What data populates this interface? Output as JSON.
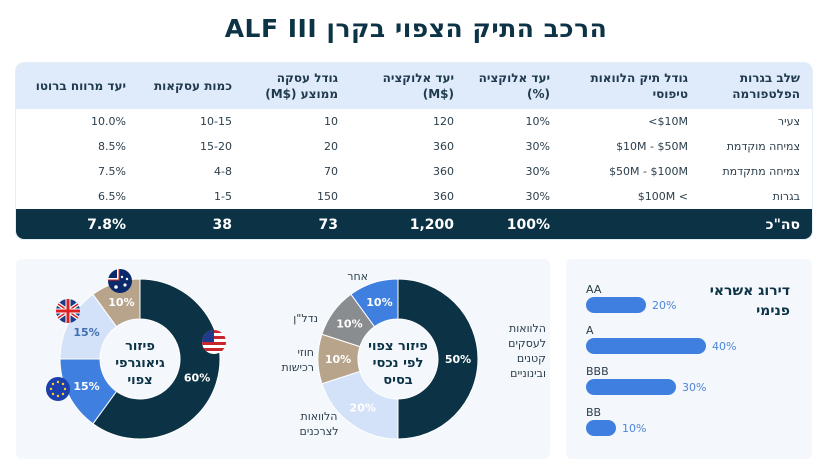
{
  "title": "ALF III הרכב התיק הצפוי בקרן",
  "table": {
    "headers": [
      "שלב בגרות הפלטפורמה",
      "גודל תיק הלוואות טיפוסי",
      "יעד אלוקציה (%)",
      "יעד אלוקציה ($M)",
      "גודל עסקה ממוצע ($M)",
      "כמות עסקאות",
      "יעד מרווח ברוטו"
    ],
    "rows": [
      [
        "צעיר",
        "<$10M",
        "10%",
        "120",
        "10",
        "10-15",
        "10.0%"
      ],
      [
        "צמיחה מוקדמת",
        "$10M - $50M",
        "30%",
        "360",
        "20",
        "15-20",
        "8.5%"
      ],
      [
        "צמיחה מתקדמת",
        "$50M - $100M",
        "30%",
        "360",
        "70",
        "4-8",
        "7.5%"
      ],
      [
        "בגרות",
        "$100M <",
        "30%",
        "360",
        "150",
        "1-5",
        "6.5%"
      ]
    ],
    "total": [
      "סה\"כ",
      "",
      "100%",
      "1,200",
      "73",
      "38",
      "7.8%"
    ]
  },
  "geo": {
    "center_label": [
      "פיזור",
      "גיאוגרפי",
      "צפוי"
    ],
    "segments": [
      {
        "value": 60,
        "label": "60%",
        "color": "#0b3345",
        "flag": "us-flag-icon"
      },
      {
        "value": 15,
        "label": "15%",
        "color": "#3f7fe0",
        "flag": "eu-flag-icon"
      },
      {
        "value": 15,
        "label": "15%",
        "color": "#d3e2f8",
        "flag": "uk-flag-icon"
      },
      {
        "value": 10,
        "label": "10%",
        "color": "#b8a48b",
        "flag": "au-flag-icon"
      }
    ]
  },
  "assets": {
    "center_label": [
      "פיזור צפוי",
      "לפי נכסי",
      "בסיס"
    ],
    "segments": [
      {
        "value": 50,
        "label": "50%",
        "color": "#0b3345",
        "name": "הלוואות לעסקים קטנים ובינוניים"
      },
      {
        "value": 20,
        "label": "20%",
        "color": "#d3e2f8",
        "name": "הלוואות לצרכנים"
      },
      {
        "value": 10,
        "label": "10%",
        "color": "#b8a48b",
        "name": "חוזי רכישות"
      },
      {
        "value": 10,
        "label": "10%",
        "color": "#8a8d90",
        "name": "נדל\"ן"
      },
      {
        "value": 10,
        "label": "10%",
        "color": "#3f7fe0",
        "name": "אחר"
      }
    ]
  },
  "rating": {
    "title": "דירוג אשראי פנימי",
    "items": [
      {
        "grade": "AA",
        "value": 20,
        "label": "20%"
      },
      {
        "grade": "A",
        "value": 40,
        "label": "40%"
      },
      {
        "grade": "BBB",
        "value": 30,
        "label": "30%"
      },
      {
        "grade": "BB",
        "value": 10,
        "label": "10%"
      }
    ]
  }
}
